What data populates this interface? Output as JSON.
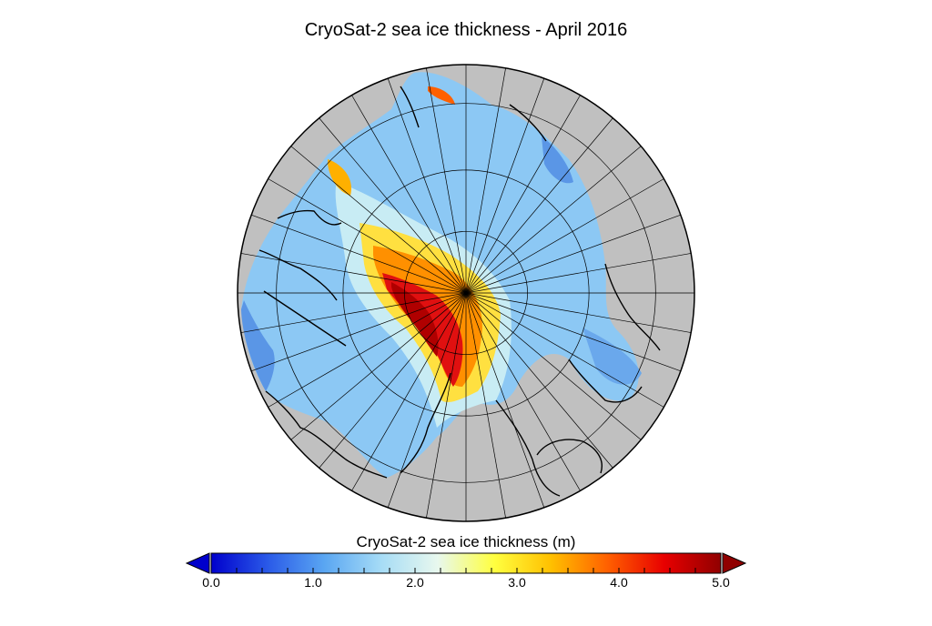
{
  "title": "CryoSat-2 sea ice thickness - April 2016",
  "colorbar": {
    "label": "CryoSat-2 sea ice thickness (m)",
    "min": 0.0,
    "max": 5.0,
    "extend": "both",
    "ticks": [
      "0.0",
      "1.0",
      "2.0",
      "3.0",
      "4.0",
      "5.0"
    ],
    "stops": [
      "#0000cc",
      "#2a5ae8",
      "#5aa6f2",
      "#a6dcf6",
      "#e8f8ee",
      "#ffff40",
      "#ffc000",
      "#ff6000",
      "#e80000",
      "#900000"
    ]
  },
  "colors": {
    "land": "#c0c0c0",
    "coastline": "#000000",
    "graticule": "#000000"
  },
  "map": {
    "projection": "north polar stereographic",
    "pole": "North Pole"
  }
}
